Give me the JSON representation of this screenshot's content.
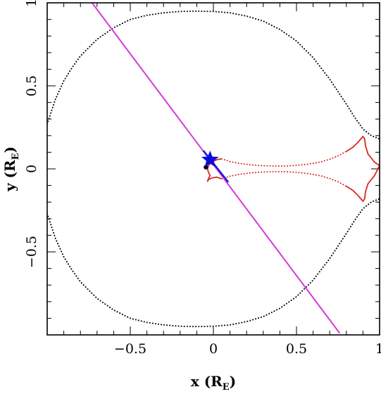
{
  "chart_data": {
    "type": "scatter",
    "xlabel": "x (R",
    "xlabel_sub": "E",
    "xlabel_close": ")",
    "ylabel": "y (R",
    "ylabel_sub": "E",
    "ylabel_close": ")",
    "xlim": [
      -1.0,
      1.0
    ],
    "ylim": [
      -1.0,
      1.0
    ],
    "x_ticks": [
      {
        "value": -0.5,
        "label": "−0.5"
      },
      {
        "value": 0,
        "label": "0"
      },
      {
        "value": 0.5,
        "label": "0.5"
      },
      {
        "value": 1,
        "label": "1"
      }
    ],
    "y_ticks": [
      {
        "value": -0.5,
        "label": "−0.5"
      },
      {
        "value": 0,
        "label": "0"
      },
      {
        "value": 0.5,
        "label": "0.5"
      },
      {
        "value": 1,
        "label": "1"
      }
    ],
    "minor_step": 0.1,
    "critical_curve": {
      "color": "#000000",
      "style": "dotted",
      "upper": {
        "x": [
          -1.0,
          -0.95,
          -0.9,
          -0.85,
          -0.8,
          -0.7,
          -0.6,
          -0.5,
          -0.4,
          -0.3,
          -0.2,
          -0.1,
          0.0,
          0.1,
          0.2,
          0.3,
          0.4,
          0.5,
          0.6,
          0.7,
          0.8,
          0.85,
          0.9,
          0.95,
          1.0
        ],
        "y": [
          0.27,
          0.42,
          0.53,
          0.61,
          0.68,
          0.78,
          0.85,
          0.9,
          0.925,
          0.94,
          0.948,
          0.95,
          0.948,
          0.94,
          0.92,
          0.89,
          0.84,
          0.77,
          0.67,
          0.54,
          0.39,
          0.31,
          0.24,
          0.2,
          0.18
        ]
      },
      "lower": {
        "x": [
          -1.0,
          -0.95,
          -0.9,
          -0.85,
          -0.8,
          -0.7,
          -0.6,
          -0.5,
          -0.4,
          -0.3,
          -0.2,
          -0.1,
          0.0,
          0.1,
          0.2,
          0.3,
          0.4,
          0.5,
          0.6,
          0.7,
          0.8,
          0.85,
          0.9,
          0.95,
          1.0
        ],
        "y": [
          -0.27,
          -0.42,
          -0.53,
          -0.61,
          -0.68,
          -0.78,
          -0.85,
          -0.9,
          -0.925,
          -0.94,
          -0.948,
          -0.95,
          -0.948,
          -0.94,
          -0.92,
          -0.89,
          -0.84,
          -0.77,
          -0.67,
          -0.54,
          -0.39,
          -0.31,
          -0.24,
          -0.2,
          -0.18
        ]
      }
    },
    "caustic": {
      "color": "#d9281f",
      "upper_dotted": {
        "x": [
          0.05,
          0.1,
          0.15,
          0.2,
          0.25,
          0.3,
          0.35,
          0.4,
          0.45,
          0.5,
          0.55,
          0.6,
          0.65,
          0.7,
          0.75,
          0.8
        ],
        "y": [
          0.06,
          0.044,
          0.034,
          0.027,
          0.022,
          0.019,
          0.017,
          0.017,
          0.018,
          0.021,
          0.026,
          0.033,
          0.043,
          0.058,
          0.078,
          0.105
        ]
      },
      "lower_dotted": {
        "x": [
          0.05,
          0.1,
          0.15,
          0.2,
          0.25,
          0.3,
          0.35,
          0.4,
          0.45,
          0.5,
          0.55,
          0.6,
          0.65,
          0.7,
          0.75,
          0.8
        ],
        "y": [
          -0.06,
          -0.044,
          -0.034,
          -0.027,
          -0.022,
          -0.019,
          -0.017,
          -0.017,
          -0.018,
          -0.021,
          -0.026,
          -0.033,
          -0.043,
          -0.058,
          -0.078,
          -0.105
        ]
      },
      "right_solid": {
        "x": [
          0.8,
          0.84,
          0.87,
          0.9,
          0.91,
          0.915,
          0.93,
          0.97,
          1.0,
          0.97,
          0.93,
          0.915,
          0.91,
          0.9,
          0.87,
          0.84,
          0.8
        ],
        "y": [
          0.105,
          0.13,
          0.16,
          0.195,
          0.18,
          0.14,
          0.09,
          0.04,
          0.02,
          -0.04,
          -0.09,
          -0.14,
          -0.18,
          -0.195,
          -0.16,
          -0.13,
          -0.105
        ]
      },
      "left_solid": {
        "x": [
          0.05,
          0.02,
          -0.01,
          -0.03,
          -0.035,
          -0.03,
          -0.02,
          -0.03,
          -0.035,
          -0.03,
          -0.01,
          0.02,
          0.05
        ],
        "y": [
          0.06,
          0.055,
          0.04,
          0.02,
          0.0,
          -0.02,
          -0.04,
          -0.06,
          -0.075,
          -0.065,
          -0.055,
          -0.05,
          -0.06
        ]
      }
    },
    "trajectory": {
      "color": "#d63ad6",
      "x": [
        -0.73,
        0.76
      ],
      "y": [
        1.0,
        -0.99
      ]
    },
    "source_track": {
      "color": "#1a1ad8",
      "x": [
        -0.06,
        0.09
      ],
      "y": [
        0.11,
        -0.08
      ]
    },
    "source_star": {
      "x": -0.02,
      "y": 0.055,
      "color": "#0a0ae0"
    },
    "lens_point": {
      "x": -0.045,
      "y": 0.01,
      "color": "#000000"
    }
  }
}
